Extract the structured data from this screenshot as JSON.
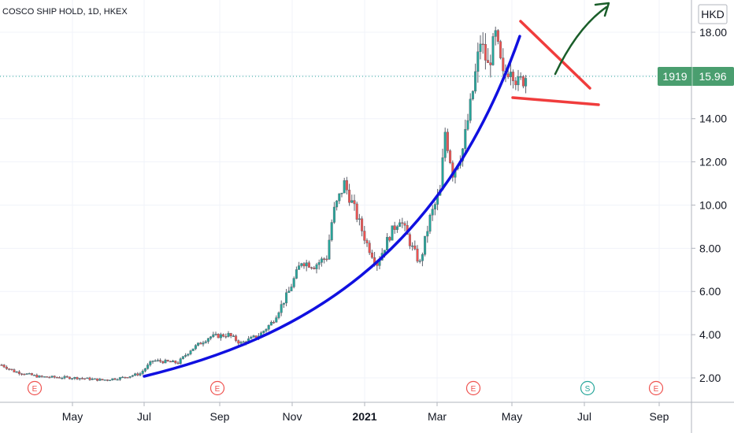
{
  "header": {
    "symbol_line": "COSCO SHIP HOLD, 1D, HKEX",
    "currency_button": "HKD"
  },
  "price_badge": {
    "ticker": "1919",
    "price": "15.96"
  },
  "colors": {
    "up": "#26a69a",
    "down": "#ef5350",
    "badge": "#4a9e6f",
    "curve": "#1010e0",
    "triangle": "#f03c3c",
    "arrow": "#1a5e2a",
    "event_e": "#ef5350",
    "event_s": "#26a69a"
  },
  "chart_data": {
    "type": "candlestick",
    "y_ticks": [
      "2.00",
      "4.00",
      "6.00",
      "8.00",
      "10.00",
      "12.00",
      "14.00",
      "16.00",
      "18.00"
    ],
    "x_ticks": [
      "May",
      "Jul",
      "Sep",
      "Nov",
      "2021",
      "Mar",
      "May",
      "Jul",
      "Sep"
    ],
    "ylim": [
      0.5,
      19.6
    ],
    "last_price": 15.96,
    "events": [
      "E",
      "E",
      "E",
      "S",
      "E"
    ],
    "approx_daily_path": [
      [
        0,
        2.6
      ],
      [
        10,
        2.3
      ],
      [
        30,
        2.05
      ],
      [
        60,
        2.0
      ],
      [
        80,
        1.9
      ],
      [
        95,
        2.0
      ],
      [
        110,
        2.2
      ],
      [
        120,
        2.8
      ],
      [
        140,
        2.7
      ],
      [
        150,
        3.3
      ],
      [
        165,
        3.9
      ],
      [
        180,
        4.0
      ],
      [
        190,
        3.6
      ],
      [
        205,
        4.0
      ],
      [
        215,
        4.6
      ],
      [
        228,
        6.0
      ],
      [
        238,
        7.4
      ],
      [
        248,
        7.2
      ],
      [
        258,
        7.6
      ],
      [
        263,
        9.6
      ],
      [
        272,
        11.0
      ],
      [
        280,
        9.8
      ],
      [
        290,
        8.2
      ],
      [
        298,
        7.3
      ],
      [
        308,
        8.6
      ],
      [
        316,
        9.4
      ],
      [
        326,
        8.0
      ],
      [
        332,
        7.3
      ],
      [
        340,
        9.4
      ],
      [
        348,
        10.6
      ],
      [
        352,
        13.4
      ],
      [
        358,
        11.5
      ],
      [
        366,
        12.6
      ],
      [
        373,
        14.9
      ],
      [
        380,
        17.6
      ],
      [
        386,
        16.4
      ],
      [
        392,
        17.8
      ],
      [
        398,
        15.9
      ],
      [
        404,
        16.5
      ],
      [
        410,
        15.6
      ],
      [
        416,
        15.96
      ]
    ]
  }
}
